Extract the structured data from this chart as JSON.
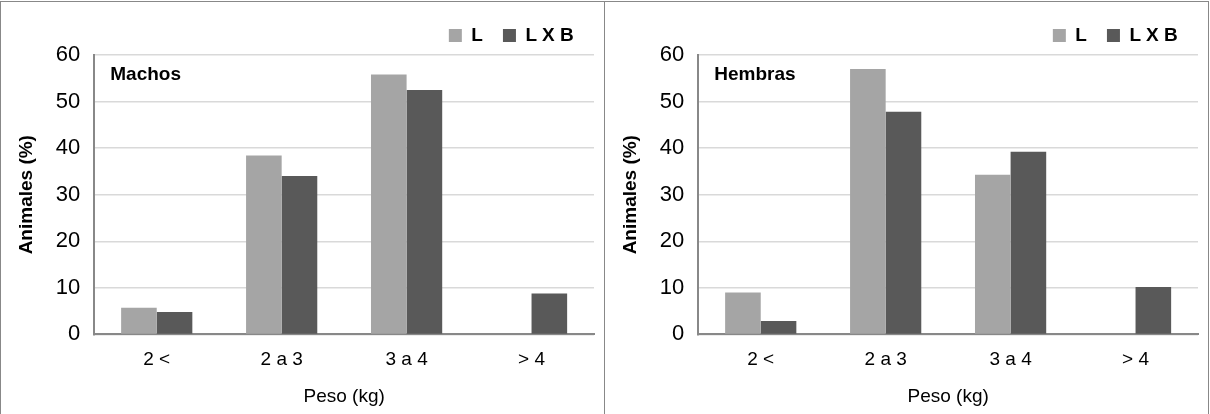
{
  "chart_data": [
    {
      "type": "bar",
      "title": "Machos",
      "xlabel": "Peso (kg)",
      "ylabel": "Animales (%)",
      "categories": [
        "2 <",
        "2 a 3",
        "3 a 4",
        "> 4"
      ],
      "series": [
        {
          "name": "L",
          "color": "#a5a5a5",
          "values": [
            5.7,
            38.4,
            55.8,
            null
          ]
        },
        {
          "name": "L X B",
          "color": "#595959",
          "values": [
            4.8,
            34,
            52.5,
            8.8
          ]
        }
      ],
      "ylim": [
        0,
        60
      ],
      "yticks": [
        0,
        10,
        20,
        30,
        40,
        50,
        60
      ],
      "grid": "y",
      "legend": "top right"
    },
    {
      "type": "bar",
      "title": "Hembras",
      "xlabel": "Peso (kg)",
      "ylabel": "Animales (%)",
      "categories": [
        "2 <",
        "2 a 3",
        "3 a 4",
        "> 4"
      ],
      "series": [
        {
          "name": "L",
          "color": "#a5a5a5",
          "values": [
            9,
            57,
            34.3,
            null
          ]
        },
        {
          "name": "L X B",
          "color": "#595959",
          "values": [
            2.9,
            47.8,
            39.2,
            10.2
          ]
        }
      ],
      "ylim": [
        0,
        60
      ],
      "yticks": [
        0,
        10,
        20,
        30,
        40,
        50,
        60
      ],
      "grid": "y",
      "legend": "top right"
    }
  ]
}
